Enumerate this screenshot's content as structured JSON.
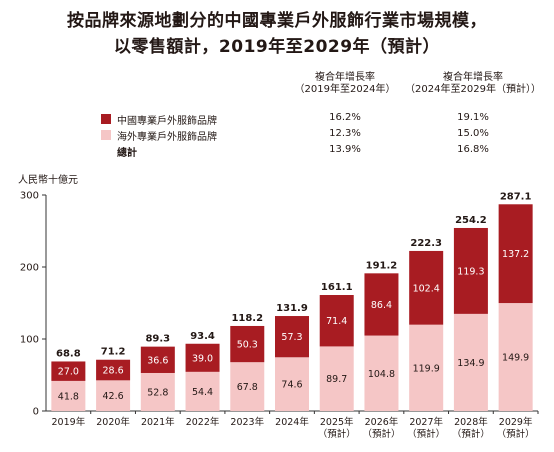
{
  "title_line1": "按品牌來源地劃分的中國專業戶外服飾行業市場規模，",
  "title_line2": "以零售額計，2019年至2029年（預計）",
  "cagr_headers": [
    {
      "line1": "複合年增長率",
      "line2": "（2019年至2024年）"
    },
    {
      "line1": "複合年增長率",
      "line2": "（2024年至2029年（預計））"
    }
  ],
  "legend": [
    {
      "label": "中國專業戶外服飾品牌",
      "color": "#a81c22",
      "cagr1": "16.2%",
      "cagr2": "19.1%"
    },
    {
      "label": "海外專業戶外服飾品牌",
      "color": "#f5c6c6",
      "cagr1": "12.3%",
      "cagr2": "15.0%"
    },
    {
      "label": "總計",
      "color": "",
      "cagr1": "13.9%",
      "cagr2": "16.8%"
    }
  ],
  "chart_data": {
    "type": "bar",
    "stacked": true,
    "ylabel": "人民幣十億元",
    "ylim": [
      0,
      300
    ],
    "yticks": [
      0,
      100,
      200,
      300
    ],
    "categories": [
      [
        "2019年"
      ],
      [
        "2020年"
      ],
      [
        "2021年"
      ],
      [
        "2022年"
      ],
      [
        "2023年"
      ],
      [
        "2024年"
      ],
      [
        "2025年",
        "（預計）"
      ],
      [
        "2026年",
        "（預計）"
      ],
      [
        "2027年",
        "（預計）"
      ],
      [
        "2028年",
        "（預計）"
      ],
      [
        "2029年",
        "（預計）"
      ]
    ],
    "series": [
      {
        "name": "海外專業戶外服飾品牌",
        "color": "#f5c6c6",
        "values": [
          41.8,
          42.6,
          52.8,
          54.4,
          67.8,
          74.6,
          89.7,
          104.8,
          119.9,
          134.9,
          149.9
        ]
      },
      {
        "name": "中國專業戶外服飾品牌",
        "color": "#a81c22",
        "values": [
          27.0,
          28.6,
          36.6,
          39.0,
          50.3,
          57.3,
          71.4,
          86.4,
          102.4,
          119.3,
          137.2
        ]
      }
    ],
    "totals": [
      68.8,
      71.2,
      89.3,
      93.4,
      118.2,
      131.9,
      161.1,
      191.2,
      222.3,
      254.2,
      287.1
    ],
    "grid": false,
    "legend_position": "top-right"
  }
}
